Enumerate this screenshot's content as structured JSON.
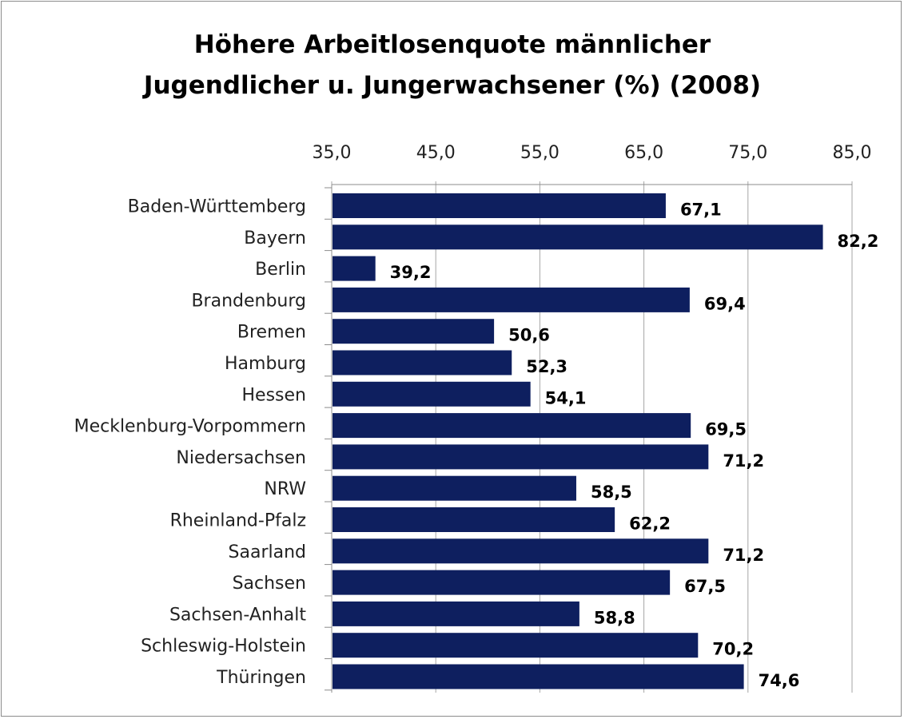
{
  "chart_data": {
    "type": "bar",
    "orientation": "horizontal",
    "title": "Höhere Arbeitlosenquote männlicher Jugendlicher u. Jungerwachsener (%) (2008)",
    "title_lines": [
      "Höhere Arbeitlosenquote männlicher",
      "Jugendlicher u. Jungerwachsener (%) (2008)"
    ],
    "categories": [
      "Baden-Württemberg",
      "Bayern",
      "Berlin",
      "Brandenburg",
      "Bremen",
      "Hamburg",
      "Hessen",
      "Mecklenburg-Vorpommern",
      "Niedersachsen",
      "NRW",
      "Rheinland-Pfalz",
      "Saarland",
      "Sachsen",
      "Sachsen-Anhalt",
      "Schleswig-Holstein",
      "Thüringen"
    ],
    "values": [
      67.1,
      82.2,
      39.2,
      69.4,
      50.6,
      52.3,
      54.1,
      69.5,
      71.2,
      58.5,
      62.2,
      71.2,
      67.5,
      58.8,
      70.2,
      74.6
    ],
    "data_labels": [
      "67,1",
      "82,2",
      "39,2",
      "69,4",
      "50,6",
      "52,3",
      "54,1",
      "69,5",
      "71,2",
      "58,5",
      "62,2",
      "71,2",
      "67,5",
      "58,8",
      "70,2",
      "74,6"
    ],
    "xlim": [
      35,
      85
    ],
    "ticks": [
      35,
      45,
      55,
      65,
      75,
      85
    ],
    "tick_labels": [
      "35,0",
      "45,0",
      "55,0",
      "65,0",
      "75,0",
      "85,0"
    ],
    "axis_position": "top",
    "grid": true,
    "xlabel": "",
    "ylabel": "",
    "bar_color": "#0e1f5f",
    "grid_color": "#a6a6a6"
  }
}
